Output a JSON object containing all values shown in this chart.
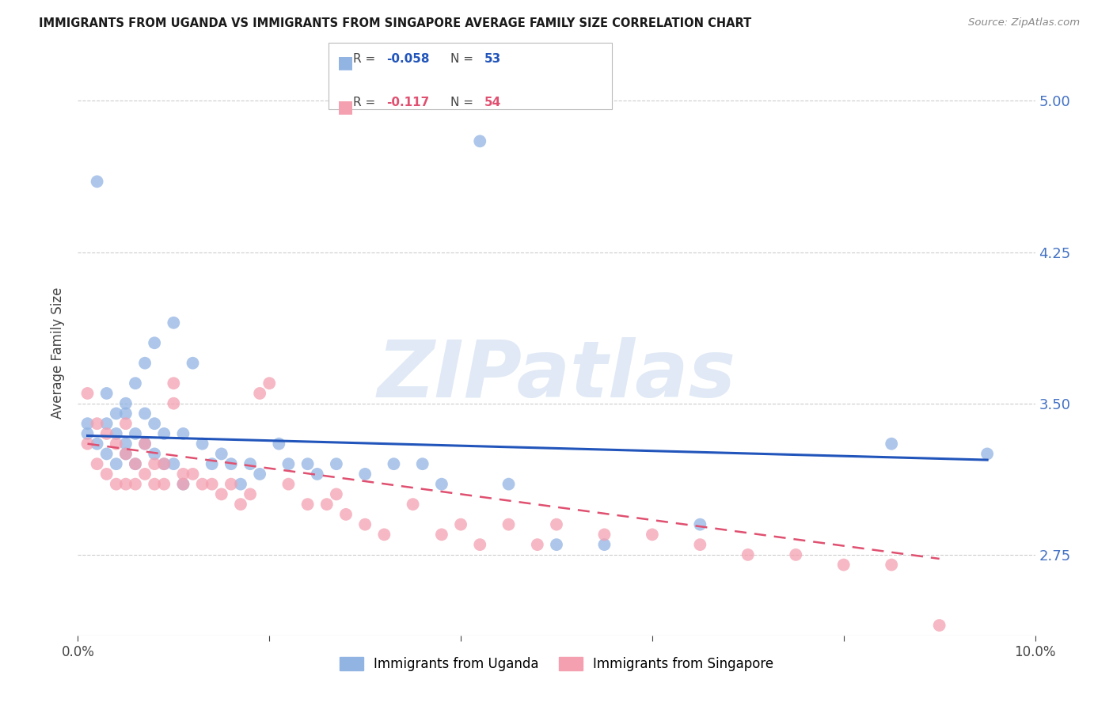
{
  "title": "IMMIGRANTS FROM UGANDA VS IMMIGRANTS FROM SINGAPORE AVERAGE FAMILY SIZE CORRELATION CHART",
  "source": "Source: ZipAtlas.com",
  "xlabel": "",
  "ylabel": "Average Family Size",
  "xlim": [
    0.0,
    0.1
  ],
  "ylim": [
    2.35,
    5.15
  ],
  "yticks": [
    2.75,
    3.5,
    4.25,
    5.0
  ],
  "xticks": [
    0.0,
    0.02,
    0.04,
    0.06,
    0.08,
    0.1
  ],
  "xtick_labels": [
    "0.0%",
    "",
    "",
    "",
    "",
    "10.0%"
  ],
  "ytick_color": "#4472C4",
  "background_color": "#FFFFFF",
  "grid_color": "#CCCCCC",
  "watermark": "ZIPatlas",
  "series1_color": "#92B4E3",
  "series2_color": "#F4A0B0",
  "series1_label": "Immigrants from Uganda",
  "series2_label": "Immigrants from Singapore",
  "series1_trend_color": "#2255BB",
  "series2_trend_color": "#E05070",
  "uganda_x": [
    0.001,
    0.001,
    0.002,
    0.002,
    0.003,
    0.003,
    0.003,
    0.004,
    0.004,
    0.004,
    0.005,
    0.005,
    0.005,
    0.005,
    0.006,
    0.006,
    0.006,
    0.007,
    0.007,
    0.007,
    0.008,
    0.008,
    0.008,
    0.009,
    0.009,
    0.01,
    0.01,
    0.011,
    0.011,
    0.012,
    0.013,
    0.014,
    0.015,
    0.016,
    0.017,
    0.018,
    0.019,
    0.021,
    0.022,
    0.024,
    0.025,
    0.027,
    0.03,
    0.033,
    0.036,
    0.038,
    0.042,
    0.045,
    0.05,
    0.055,
    0.065,
    0.085,
    0.095
  ],
  "uganda_y": [
    3.35,
    3.4,
    3.3,
    4.6,
    3.55,
    3.25,
    3.4,
    3.45,
    3.35,
    3.2,
    3.5,
    3.3,
    3.25,
    3.45,
    3.6,
    3.35,
    3.2,
    3.7,
    3.45,
    3.3,
    3.8,
    3.4,
    3.25,
    3.35,
    3.2,
    3.9,
    3.2,
    3.35,
    3.1,
    3.7,
    3.3,
    3.2,
    3.25,
    3.2,
    3.1,
    3.2,
    3.15,
    3.3,
    3.2,
    3.2,
    3.15,
    3.2,
    3.15,
    3.2,
    3.2,
    3.1,
    4.8,
    3.1,
    2.8,
    2.8,
    2.9,
    3.3,
    3.25
  ],
  "singapore_x": [
    0.001,
    0.001,
    0.002,
    0.002,
    0.003,
    0.003,
    0.004,
    0.004,
    0.005,
    0.005,
    0.005,
    0.006,
    0.006,
    0.007,
    0.007,
    0.008,
    0.008,
    0.009,
    0.009,
    0.01,
    0.01,
    0.011,
    0.011,
    0.012,
    0.013,
    0.014,
    0.015,
    0.016,
    0.017,
    0.018,
    0.019,
    0.02,
    0.022,
    0.024,
    0.026,
    0.027,
    0.028,
    0.03,
    0.032,
    0.035,
    0.038,
    0.04,
    0.042,
    0.045,
    0.048,
    0.05,
    0.055,
    0.06,
    0.065,
    0.07,
    0.075,
    0.08,
    0.085,
    0.09
  ],
  "singapore_y": [
    3.55,
    3.3,
    3.4,
    3.2,
    3.35,
    3.15,
    3.3,
    3.1,
    3.4,
    3.25,
    3.1,
    3.2,
    3.1,
    3.3,
    3.15,
    3.2,
    3.1,
    3.2,
    3.1,
    3.5,
    3.6,
    3.15,
    3.1,
    3.15,
    3.1,
    3.1,
    3.05,
    3.1,
    3.0,
    3.05,
    3.55,
    3.6,
    3.1,
    3.0,
    3.0,
    3.05,
    2.95,
    2.9,
    2.85,
    3.0,
    2.85,
    2.9,
    2.8,
    2.9,
    2.8,
    2.9,
    2.85,
    2.85,
    2.8,
    2.75,
    2.75,
    2.7,
    2.7,
    2.4
  ],
  "uganda_trend_x": [
    0.001,
    0.095
  ],
  "uganda_trend_y": [
    3.34,
    3.22
  ],
  "singapore_trend_x": [
    0.001,
    0.09
  ],
  "singapore_trend_y": [
    3.3,
    2.73
  ]
}
